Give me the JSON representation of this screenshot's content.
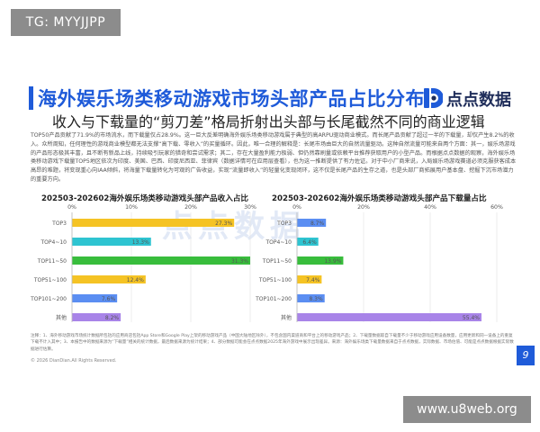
{
  "badges": {
    "tg": "TG: MYYJJPP",
    "site": "www.u8web.org"
  },
  "header": {
    "title": "海外娱乐场类移动游戏市场头部产品占比分布",
    "subtitle": "收入与下载量的“剪刀差”格局折射出头部与长尾截然不同的商业逻辑",
    "logo_text": "点点数据"
  },
  "body_text": "TOP50产品贡献了71.9%的市场流水，而下载量仅占28.9%。这一巨大反差明确海外娱乐场类移动游戏属于典型的高ARPU驱动商业模式。而长尾产品贡献了超过一半的下载量，却仅产生8.2%的收入。众所周知，任何理性的游戏商业模型都无法支撑“高下载、零收入”的买量循环。因此，唯一合理的解释是：长尾市场由巨大的自然流量驱动。这种自然流量可能来自两个方面：其一，娱乐场游戏的产品形态极其丰富，且不断有新品上线，持续吸引玩家的猎奇和尝试需求；其二，存在大量盈利能力极弱、但仍然靠刷量或依赖平台推荐获取用户的小型产品。而根据点点数据的观察，海外娱乐场类移动游戏下载量TOP5地区依次为印度、美国、巴西、印度尼西亚、菲律宾（数据详情可在应用层查看），也为这一推断提供了有力佐证。对于中小厂商来说，入局娱乐场游戏赛道必须克服获客成本高昂的难题，将变现重心向IAA倾斜，将海量下载量转化为可观的广告收益，实现“流量即收入”的轻量化变现闭环，这不仅是长尾产品的生存之道，也是头部厂商拓展用户基本盘、挖掘下沉市场潜力的重要方向。",
  "watermark": "点点数据",
  "footnote": "注释：1、海外移动游戏市场统计数据所包括的应用商店包括App Store和Google Play上架的移动游戏产品（中国大陆地区除外），不包含国内渠道商和平台上的移动游戏产品；2、下载量数据取自下载量不少于移动游戏应用设备数量，应用更新和同一设备上的重复下载不计入其中；3、本报告中的数据来源为“下载量”相关的统计数据，最后数据来源为统计结果；4、部分数据可能会在点点数据2025年海外游戏中展示出现差异。来源：海外娱乐场类下载量数据来自于点点数据，实际数据、市场估值、可能是点点数据根据实际数据进行估算。",
  "copyright": "© 2026 DianDian.All Rights Reserved.",
  "page_number": "9",
  "chart_data": [
    {
      "type": "bar",
      "orientation": "horizontal",
      "title": "202503-202602海外娱乐场类移动游戏头部产品收入占比",
      "categories": [
        "TOP3",
        "TOP4~10",
        "TOP11~50",
        "TOP51~100",
        "TOP101~200",
        "其他"
      ],
      "values": [
        27.3,
        13.3,
        31.3,
        12.4,
        7.6,
        8.2
      ],
      "value_labels": [
        "27.3%",
        "13.3%",
        "31.3%",
        "12.4%",
        "7.6%",
        "8.2%"
      ],
      "colors": [
        "#f5c324",
        "#2ec4d1",
        "#38bd3c",
        "#f5c324",
        "#5b8ef2",
        "#a884e8"
      ],
      "xlim": [
        0,
        30
      ],
      "x_ticks": [
        "0%",
        "10%",
        "20%",
        "30%"
      ],
      "grid": true
    },
    {
      "type": "bar",
      "orientation": "horizontal",
      "title": "202503-202602海外娱乐场类移动游戏头部产品下载量占比",
      "categories": [
        "TOP3",
        "TOP4~10",
        "TOP11~50",
        "TOP51~100",
        "TOP101~200",
        "其他"
      ],
      "values": [
        8.7,
        6.4,
        13.9,
        7.4,
        8.3,
        55.4
      ],
      "value_labels": [
        "8.7%",
        "6.4%",
        "13.9%",
        "7.4%",
        "8.3%",
        "55.4%"
      ],
      "colors": [
        "#5b8ef2",
        "#2ec4d1",
        "#38bd3c",
        "#f5c324",
        "#5b8ef2",
        "#a884e8"
      ],
      "xlim": [
        0,
        60
      ],
      "x_ticks": [
        "0%",
        "20%",
        "40%",
        "60%"
      ],
      "grid": true
    }
  ]
}
